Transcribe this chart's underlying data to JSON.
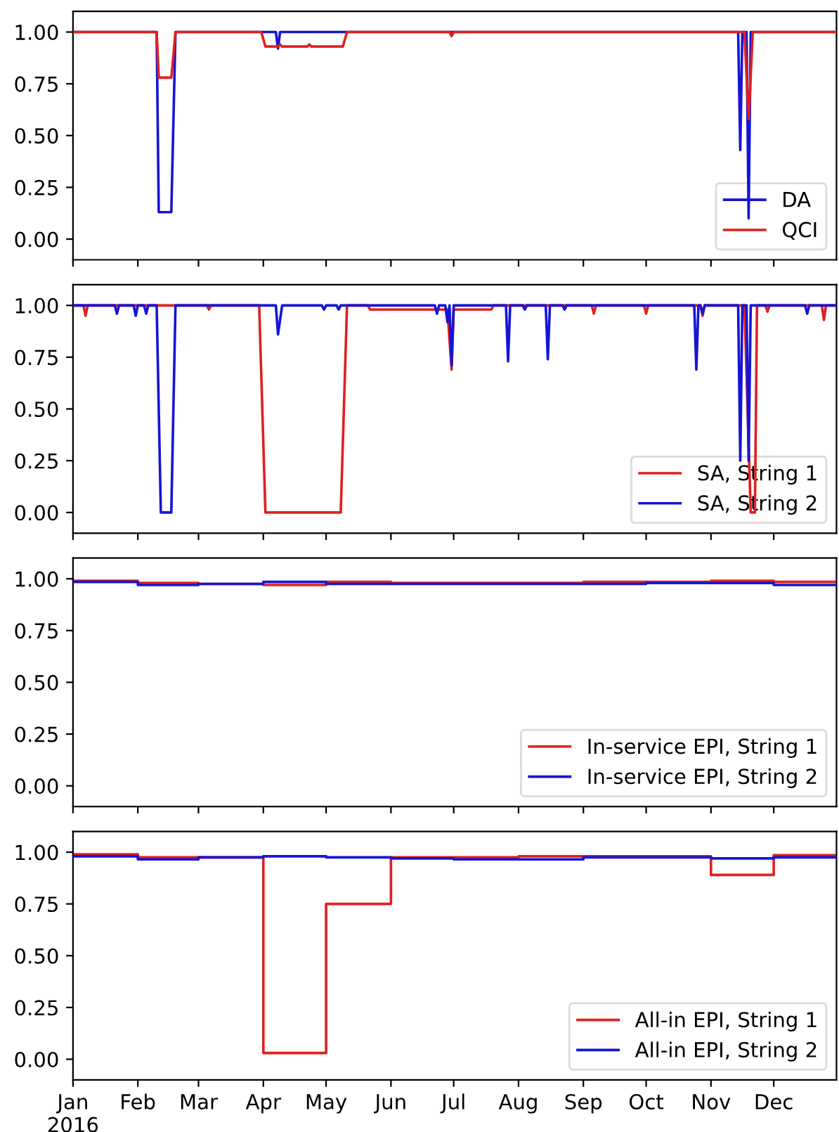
{
  "chart_data": [
    {
      "type": "line",
      "xlim": [
        "2016-01-01",
        "2016-12-31"
      ],
      "ylim": [
        -0.1,
        1.1
      ],
      "yticks": [
        {
          "value": 0,
          "label": "0.00"
        },
        {
          "value": 0.25,
          "label": "0.25"
        },
        {
          "value": 0.5,
          "label": "0.50"
        },
        {
          "value": 0.75,
          "label": "0.75"
        },
        {
          "value": 1,
          "label": "1.00"
        }
      ],
      "xticks": [
        {
          "value": "2016-01-01",
          "label": null
        },
        {
          "value": "2016-02-01",
          "label": null
        },
        {
          "value": "2016-03-01",
          "label": null
        },
        {
          "value": "2016-04-01",
          "label": null
        },
        {
          "value": "2016-05-01",
          "label": null
        },
        {
          "value": "2016-06-01",
          "label": null
        },
        {
          "value": "2016-07-01",
          "label": null
        },
        {
          "value": "2016-08-01",
          "label": null
        },
        {
          "value": "2016-09-01",
          "label": null
        },
        {
          "value": "2016-10-01",
          "label": null
        },
        {
          "value": "2016-11-01",
          "label": null
        },
        {
          "value": "2016-12-01",
          "label": null
        }
      ],
      "tick_labels": "y",
      "legend": "bottom right",
      "series": [
        {
          "name": "DA",
          "color": "#1515d5",
          "x": [
            "2016-01-01",
            "2016-02-10",
            "2016-02-11",
            "2016-02-17",
            "2016-02-19",
            "2016-04-07",
            "2016-04-08",
            "2016-04-09",
            "2016-11-14",
            "2016-11-15",
            "2016-11-16",
            "2016-11-18",
            "2016-11-19",
            "2016-11-20",
            "2016-12-31"
          ],
          "values": [
            1,
            1,
            0.13,
            0.13,
            1,
            1,
            0.92,
            1,
            1,
            0.43,
            1,
            1,
            0.1,
            1,
            1
          ]
        },
        {
          "name": "QCI",
          "color": "#e02020",
          "x": [
            "2016-01-01",
            "2016-02-10",
            "2016-02-11",
            "2016-02-17",
            "2016-02-19",
            "2016-03-31",
            "2016-04-02",
            "2016-04-08",
            "2016-04-09",
            "2016-04-10",
            "2016-04-22",
            "2016-04-23",
            "2016-04-24",
            "2016-05-09",
            "2016-05-11",
            "2016-06-29",
            "2016-06-30",
            "2016-07-01",
            "2016-11-17",
            "2016-11-19",
            "2016-11-21",
            "2016-12-31"
          ],
          "values": [
            1,
            1,
            0.78,
            0.78,
            1,
            1,
            0.93,
            0.93,
            0.94,
            0.93,
            0.93,
            0.94,
            0.93,
            0.93,
            1,
            1,
            0.98,
            1,
            1,
            0.58,
            1,
            1
          ]
        }
      ]
    },
    {
      "type": "line",
      "xlim": [
        "2016-01-01",
        "2016-12-31"
      ],
      "ylim": [
        -0.1,
        1.1
      ],
      "yticks": [
        {
          "value": 0,
          "label": "0.00"
        },
        {
          "value": 0.25,
          "label": "0.25"
        },
        {
          "value": 0.5,
          "label": "0.50"
        },
        {
          "value": 0.75,
          "label": "0.75"
        },
        {
          "value": 1,
          "label": "1.00"
        }
      ],
      "xticks": [
        {
          "value": "2016-01-01",
          "label": null
        },
        {
          "value": "2016-02-01",
          "label": null
        },
        {
          "value": "2016-03-01",
          "label": null
        },
        {
          "value": "2016-04-01",
          "label": null
        },
        {
          "value": "2016-05-01",
          "label": null
        },
        {
          "value": "2016-06-01",
          "label": null
        },
        {
          "value": "2016-07-01",
          "label": null
        },
        {
          "value": "2016-08-01",
          "label": null
        },
        {
          "value": "2016-09-01",
          "label": null
        },
        {
          "value": "2016-10-01",
          "label": null
        },
        {
          "value": "2016-11-01",
          "label": null
        },
        {
          "value": "2016-12-01",
          "label": null
        }
      ],
      "tick_labels": "y",
      "legend": "bottom right",
      "series": [
        {
          "name": "SA, String 1",
          "color": "#e02020",
          "x": [
            "2016-01-01",
            "2016-01-06",
            "2016-01-07",
            "2016-01-08",
            "2016-03-05",
            "2016-03-06",
            "2016-03-07",
            "2016-03-30",
            "2016-04-02",
            "2016-05-08",
            "2016-05-11",
            "2016-05-21",
            "2016-05-22",
            "2016-06-28",
            "2016-06-30",
            "2016-07-01",
            "2016-07-19",
            "2016-07-20",
            "2016-09-05",
            "2016-09-06",
            "2016-09-07",
            "2016-09-30",
            "2016-10-01",
            "2016-10-02",
            "2016-10-27",
            "2016-10-28",
            "2016-10-29",
            "2016-11-17",
            "2016-11-20",
            "2016-11-22",
            "2016-11-23",
            "2016-11-27",
            "2016-11-28",
            "2016-11-29",
            "2016-12-24",
            "2016-12-25",
            "2016-12-26",
            "2016-12-31"
          ],
          "values": [
            1,
            1,
            0.95,
            1,
            1,
            0.98,
            1,
            1,
            0,
            0,
            1,
            1,
            0.98,
            0.98,
            0.69,
            0.98,
            0.98,
            1,
            1,
            0.96,
            1,
            1,
            0.96,
            1,
            1,
            0.95,
            1,
            1,
            0,
            0,
            1,
            1,
            0.97,
            1,
            1,
            0.93,
            1,
            1
          ]
        },
        {
          "name": "SA, String 2",
          "color": "#1515d5",
          "x": [
            "2016-01-01",
            "2016-01-21",
            "2016-01-22",
            "2016-01-23",
            "2016-01-30",
            "2016-01-31",
            "2016-02-01",
            "2016-02-04",
            "2016-02-05",
            "2016-02-06",
            "2016-02-10",
            "2016-02-12",
            "2016-02-17",
            "2016-02-19",
            "2016-04-07",
            "2016-04-08",
            "2016-04-10",
            "2016-04-29",
            "2016-04-30",
            "2016-05-01",
            "2016-05-06",
            "2016-05-07",
            "2016-05-08",
            "2016-06-22",
            "2016-06-23",
            "2016-06-24",
            "2016-06-27",
            "2016-06-28",
            "2016-06-29",
            "2016-06-30",
            "2016-07-01",
            "2016-07-26",
            "2016-07-27",
            "2016-07-28",
            "2016-08-03",
            "2016-08-04",
            "2016-08-05",
            "2016-08-14",
            "2016-08-15",
            "2016-08-16",
            "2016-08-22",
            "2016-08-23",
            "2016-08-24",
            "2016-10-24",
            "2016-10-25",
            "2016-10-26",
            "2016-10-27",
            "2016-10-28",
            "2016-10-29",
            "2016-11-14",
            "2016-11-15",
            "2016-11-16",
            "2016-11-18",
            "2016-11-19",
            "2016-11-20",
            "2016-12-16",
            "2016-12-17",
            "2016-12-18",
            "2016-12-31"
          ],
          "values": [
            1,
            1,
            0.96,
            1,
            1,
            0.95,
            1,
            1,
            0.96,
            1,
            1,
            0,
            0,
            1,
            1,
            0.86,
            1,
            1,
            0.98,
            1,
            1,
            0.98,
            1,
            1,
            0.96,
            1,
            1,
            0.92,
            1,
            0.71,
            1,
            1,
            0.73,
            1,
            1,
            0.98,
            1,
            1,
            0.74,
            1,
            1,
            0.98,
            1,
            1,
            0.69,
            1,
            1,
            0.96,
            1,
            1,
            0.25,
            1,
            1,
            0.25,
            1,
            1,
            0.96,
            1,
            1
          ]
        }
      ]
    },
    {
      "type": "step",
      "xlim": [
        "2016-01-01",
        "2016-12-31"
      ],
      "ylim": [
        -0.1,
        1.1
      ],
      "yticks": [
        {
          "value": 0,
          "label": "0.00"
        },
        {
          "value": 0.25,
          "label": "0.25"
        },
        {
          "value": 0.5,
          "label": "0.50"
        },
        {
          "value": 0.75,
          "label": "0.75"
        },
        {
          "value": 1,
          "label": "1.00"
        }
      ],
      "xticks": [
        {
          "value": "2016-01-01",
          "label": null
        },
        {
          "value": "2016-02-01",
          "label": null
        },
        {
          "value": "2016-03-01",
          "label": null
        },
        {
          "value": "2016-04-01",
          "label": null
        },
        {
          "value": "2016-05-01",
          "label": null
        },
        {
          "value": "2016-06-01",
          "label": null
        },
        {
          "value": "2016-07-01",
          "label": null
        },
        {
          "value": "2016-08-01",
          "label": null
        },
        {
          "value": "2016-09-01",
          "label": null
        },
        {
          "value": "2016-10-01",
          "label": null
        },
        {
          "value": "2016-11-01",
          "label": null
        },
        {
          "value": "2016-12-01",
          "label": null
        }
      ],
      "tick_labels": "y",
      "legend": "bottom right",
      "x": [
        "2016-01-01",
        "2016-02-01",
        "2016-03-01",
        "2016-04-01",
        "2016-05-01",
        "2016-06-01",
        "2016-07-01",
        "2016-08-01",
        "2016-09-01",
        "2016-10-01",
        "2016-11-01",
        "2016-12-01",
        "2016-12-31"
      ],
      "series": [
        {
          "name": "In-service EPI, String 1",
          "color": "#e02020",
          "values": [
            0.99,
            0.98,
            0.975,
            0.97,
            0.985,
            0.98,
            0.98,
            0.98,
            0.985,
            0.985,
            0.99,
            0.985,
            0.985
          ]
        },
        {
          "name": "In-service EPI, String 2",
          "color": "#1515d5",
          "values": [
            0.985,
            0.97,
            0.975,
            0.985,
            0.975,
            0.975,
            0.975,
            0.975,
            0.975,
            0.98,
            0.98,
            0.97,
            0.97
          ]
        }
      ]
    },
    {
      "type": "step",
      "xlim": [
        "2016-01-01",
        "2016-12-31"
      ],
      "ylim": [
        -0.1,
        1.1
      ],
      "yticks": [
        {
          "value": 0,
          "label": "0.00"
        },
        {
          "value": 0.25,
          "label": "0.25"
        },
        {
          "value": 0.5,
          "label": "0.50"
        },
        {
          "value": 0.75,
          "label": "0.75"
        },
        {
          "value": 1,
          "label": "1.00"
        }
      ],
      "xticks": [
        {
          "value": "2016-01-01",
          "label": "Jan\n2016"
        },
        {
          "value": "2016-02-01",
          "label": "Feb"
        },
        {
          "value": "2016-03-01",
          "label": "Mar"
        },
        {
          "value": "2016-04-01",
          "label": "Apr"
        },
        {
          "value": "2016-05-01",
          "label": "May"
        },
        {
          "value": "2016-06-01",
          "label": "Jun"
        },
        {
          "value": "2016-07-01",
          "label": "Jul"
        },
        {
          "value": "2016-08-01",
          "label": "Aug"
        },
        {
          "value": "2016-09-01",
          "label": "Sep"
        },
        {
          "value": "2016-10-01",
          "label": "Oct"
        },
        {
          "value": "2016-11-01",
          "label": "Nov"
        },
        {
          "value": "2016-12-01",
          "label": "Dec"
        }
      ],
      "legend": "bottom right",
      "x": [
        "2016-01-01",
        "2016-02-01",
        "2016-03-01",
        "2016-04-01",
        "2016-05-01",
        "2016-06-01",
        "2016-07-01",
        "2016-08-01",
        "2016-09-01",
        "2016-10-01",
        "2016-11-01",
        "2016-12-01",
        "2016-12-31"
      ],
      "series": [
        {
          "name": "All-in EPI, String 1",
          "color": "#e02020",
          "values": [
            0.99,
            0.975,
            0.975,
            0.03,
            0.75,
            0.975,
            0.975,
            0.98,
            0.98,
            0.98,
            0.89,
            0.985,
            0.985
          ]
        },
        {
          "name": "All-in EPI, String 2",
          "color": "#1515d5",
          "values": [
            0.98,
            0.965,
            0.975,
            0.98,
            0.975,
            0.97,
            0.965,
            0.965,
            0.975,
            0.975,
            0.97,
            0.975,
            0.975
          ]
        }
      ]
    }
  ]
}
